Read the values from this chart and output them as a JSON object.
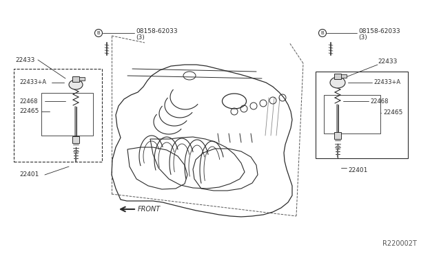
{
  "background_color": "#ffffff",
  "diagram_color": "#2a2a2a",
  "fig_width": 6.4,
  "fig_height": 3.72,
  "dpi": 100,
  "watermark": "R220002T",
  "labels": {
    "bolt_label": "08158-62033",
    "bolt_qty": "(3)",
    "bolt_circle": "B",
    "l_22433": "22433",
    "r_22433": "22433",
    "l_22433A": "22433+A",
    "r_22433A": "22433+A",
    "l_22468": "22468",
    "r_22468": "22468",
    "l_22465": "22465",
    "r_22465": "22465",
    "l_22401": "22401",
    "r_22401": "22401",
    "front": "FRONT"
  }
}
